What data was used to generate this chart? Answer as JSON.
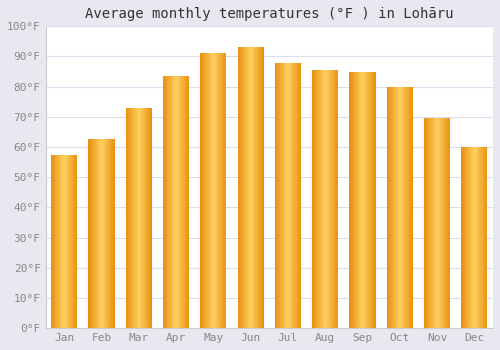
{
  "months": [
    "Jan",
    "Feb",
    "Mar",
    "Apr",
    "May",
    "Jun",
    "Jul",
    "Aug",
    "Sep",
    "Oct",
    "Nov",
    "Dec"
  ],
  "temps": [
    57.5,
    62.5,
    73,
    83.5,
    91,
    93,
    88,
    85.5,
    85,
    80,
    69.5,
    60
  ],
  "title": "Average monthly temperatures (°F ) in Lohāru",
  "ylim": [
    0,
    100
  ],
  "yticks": [
    0,
    10,
    20,
    30,
    40,
    50,
    60,
    70,
    80,
    90,
    100
  ],
  "ytick_labels": [
    "0°F",
    "10°F",
    "20°F",
    "30°F",
    "40°F",
    "50°F",
    "60°F",
    "70°F",
    "80°F",
    "90°F",
    "100°F"
  ],
  "bar_color_center": "#FFD060",
  "bar_color_edge": "#E89010",
  "figure_bg": "#e8e8f0",
  "plot_bg": "#ffffff",
  "grid_color": "#ddddee",
  "title_fontsize": 10,
  "tick_fontsize": 8,
  "bar_width": 0.7
}
